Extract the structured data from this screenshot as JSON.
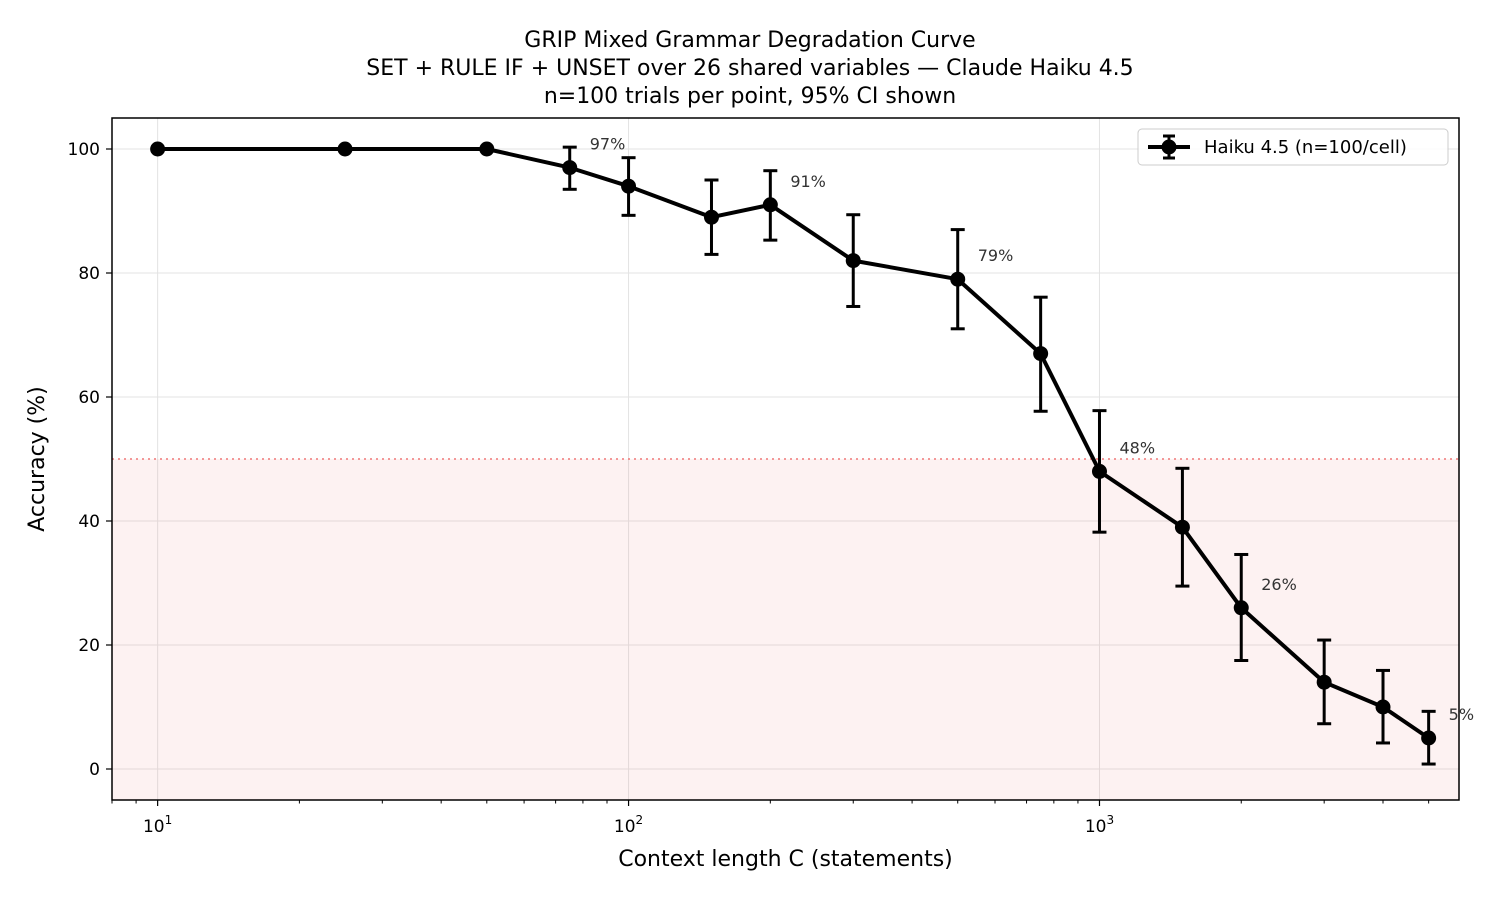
{
  "chart_data": {
    "type": "line",
    "title": "GRIP Mixed Grammar Degradation Curve",
    "subtitle": "SET + RULE IF + UNSET over 26 shared variables — Claude Haiku 4.5",
    "subtitle2": "n=100 trials per point, 95% CI shown",
    "xlabel": "Context length C (statements)",
    "ylabel": "Accuracy (%)",
    "xscale": "log",
    "xlim": [
      8,
      5800
    ],
    "ylim": [
      -5,
      105
    ],
    "grid": true,
    "legend_position": "top-right",
    "x_ticks": [
      {
        "value": 10,
        "base": "10",
        "exp": "1"
      },
      {
        "value": 100,
        "base": "10",
        "exp": "2"
      },
      {
        "value": 1000,
        "base": "10",
        "exp": "3"
      }
    ],
    "y_ticks": [
      0,
      20,
      40,
      60,
      80,
      100
    ],
    "threshold": {
      "y": 50,
      "shade_below": true,
      "color": "#f08080"
    },
    "series": [
      {
        "name": "Haiku 4.5 (n=100/cell)",
        "color": "#000000",
        "x": [
          10,
          25,
          50,
          75,
          100,
          150,
          200,
          300,
          500,
          750,
          1000,
          1500,
          2000,
          3000,
          4000,
          5000
        ],
        "y": [
          100,
          100,
          100,
          97,
          94,
          89,
          91,
          82,
          79,
          67,
          48,
          39,
          26,
          14,
          10,
          5
        ],
        "ci_low": [
          100,
          100,
          100,
          93.5,
          89.3,
          83,
          85.3,
          74.6,
          71,
          57.7,
          38.2,
          29.5,
          17.5,
          7.3,
          4.2,
          0.8
        ],
        "ci_high": [
          100,
          100,
          100,
          100.3,
          98.6,
          95,
          96.5,
          89.4,
          87,
          76.1,
          57.8,
          48.5,
          34.6,
          20.8,
          15.9,
          9.3
        ]
      }
    ],
    "annotations": [
      {
        "x": 75,
        "y": 97,
        "text": "97%"
      },
      {
        "x": 200,
        "y": 91,
        "text": "91%"
      },
      {
        "x": 500,
        "y": 79,
        "text": "79%"
      },
      {
        "x": 1000,
        "y": 48,
        "text": "48%"
      },
      {
        "x": 2000,
        "y": 26,
        "text": "26%"
      },
      {
        "x": 5000,
        "y": 5,
        "text": "5%"
      }
    ]
  }
}
